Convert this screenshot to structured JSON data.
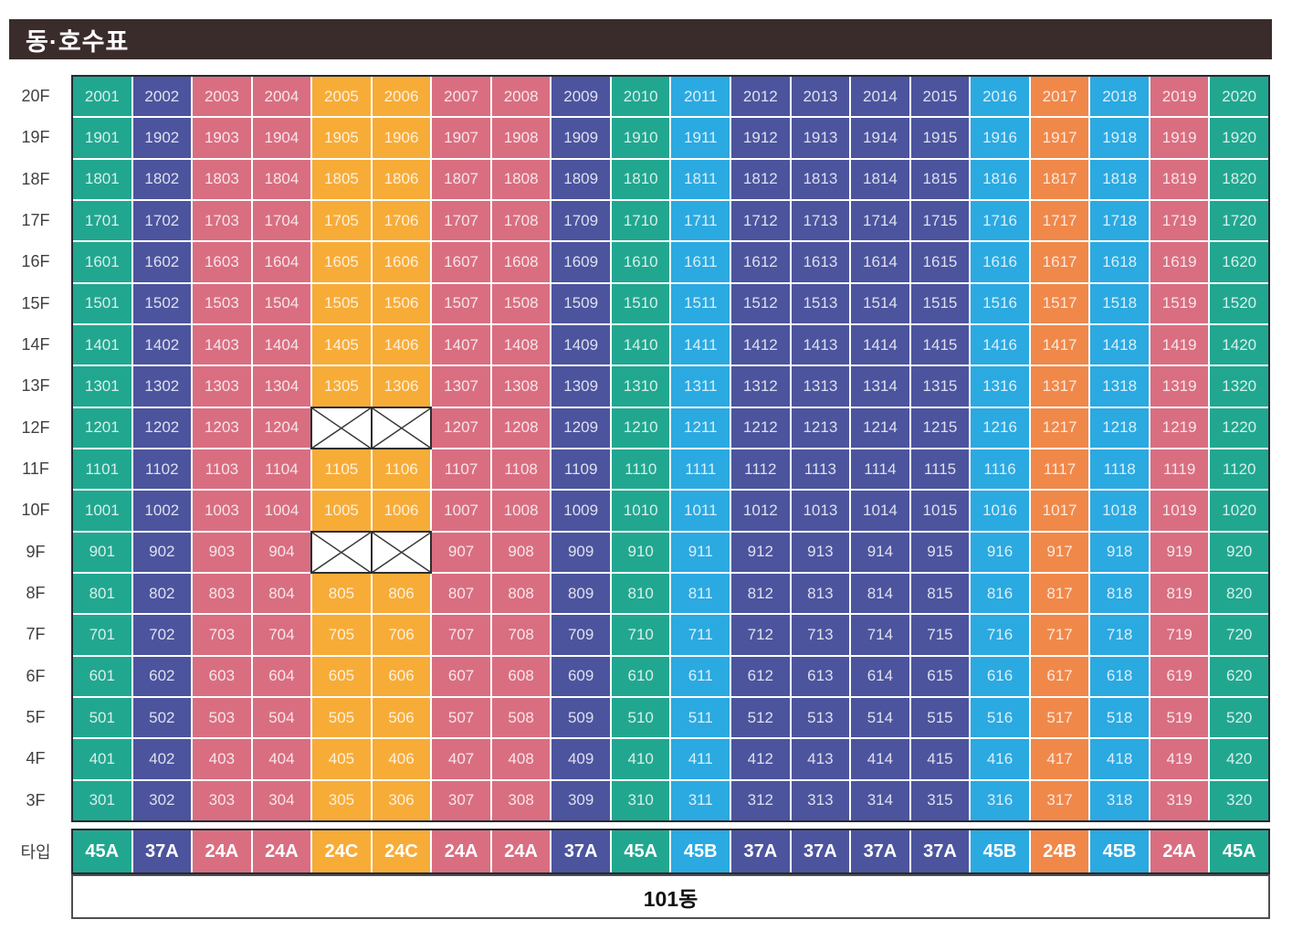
{
  "title": "동·호수표",
  "type_row_label": "타입",
  "building_label": "101동",
  "colors": {
    "title_bg": "#3B2C2C",
    "grid_border": "#252A33",
    "types": {
      "45A": "#21A78F",
      "37A": "#4C549E",
      "24A": "#D96E81",
      "24C": "#F7AC38",
      "45B": "#2BA9E1",
      "24B": "#F0884A"
    }
  },
  "column_types": [
    "45A",
    "37A",
    "24A",
    "24A",
    "24C",
    "24C",
    "24A",
    "24A",
    "37A",
    "45A",
    "45B",
    "37A",
    "37A",
    "37A",
    "37A",
    "45B",
    "24B",
    "45B",
    "24A",
    "45A"
  ],
  "floors": [
    {
      "label": "20F",
      "units": [
        "2001",
        "2002",
        "2003",
        "2004",
        "2005",
        "2006",
        "2007",
        "2008",
        "2009",
        "2010",
        "2011",
        "2012",
        "2013",
        "2014",
        "2015",
        "2016",
        "2017",
        "2018",
        "2019",
        "2020"
      ]
    },
    {
      "label": "19F",
      "units": [
        "1901",
        "1902",
        "1903",
        "1904",
        "1905",
        "1906",
        "1907",
        "1908",
        "1909",
        "1910",
        "1911",
        "1912",
        "1913",
        "1914",
        "1915",
        "1916",
        "1917",
        "1918",
        "1919",
        "1920"
      ]
    },
    {
      "label": "18F",
      "units": [
        "1801",
        "1802",
        "1803",
        "1804",
        "1805",
        "1806",
        "1807",
        "1808",
        "1809",
        "1810",
        "1811",
        "1812",
        "1813",
        "1814",
        "1815",
        "1816",
        "1817",
        "1818",
        "1819",
        "1820"
      ]
    },
    {
      "label": "17F",
      "units": [
        "1701",
        "1702",
        "1703",
        "1704",
        "1705",
        "1706",
        "1707",
        "1708",
        "1709",
        "1710",
        "1711",
        "1712",
        "1713",
        "1714",
        "1715",
        "1716",
        "1717",
        "1718",
        "1719",
        "1720"
      ]
    },
    {
      "label": "16F",
      "units": [
        "1601",
        "1602",
        "1603",
        "1604",
        "1605",
        "1606",
        "1607",
        "1608",
        "1609",
        "1610",
        "1611",
        "1612",
        "1613",
        "1614",
        "1615",
        "1616",
        "1617",
        "1618",
        "1619",
        "1620"
      ]
    },
    {
      "label": "15F",
      "units": [
        "1501",
        "1502",
        "1503",
        "1504",
        "1505",
        "1506",
        "1507",
        "1508",
        "1509",
        "1510",
        "1511",
        "1512",
        "1513",
        "1514",
        "1515",
        "1516",
        "1517",
        "1518",
        "1519",
        "1520"
      ]
    },
    {
      "label": "14F",
      "units": [
        "1401",
        "1402",
        "1403",
        "1404",
        "1405",
        "1406",
        "1407",
        "1408",
        "1409",
        "1410",
        "1411",
        "1412",
        "1413",
        "1414",
        "1415",
        "1416",
        "1417",
        "1418",
        "1419",
        "1420"
      ]
    },
    {
      "label": "13F",
      "units": [
        "1301",
        "1302",
        "1303",
        "1304",
        "1305",
        "1306",
        "1307",
        "1308",
        "1309",
        "1310",
        "1311",
        "1312",
        "1313",
        "1314",
        "1315",
        "1316",
        "1317",
        "1318",
        "1319",
        "1320"
      ]
    },
    {
      "label": "12F",
      "units": [
        "1201",
        "1202",
        "1203",
        "1204",
        null,
        null,
        "1207",
        "1208",
        "1209",
        "1210",
        "1211",
        "1212",
        "1213",
        "1214",
        "1215",
        "1216",
        "1217",
        "1218",
        "1219",
        "1220"
      ]
    },
    {
      "label": "11F",
      "units": [
        "1101",
        "1102",
        "1103",
        "1104",
        "1105",
        "1106",
        "1107",
        "1108",
        "1109",
        "1110",
        "1111",
        "1112",
        "1113",
        "1114",
        "1115",
        "1116",
        "1117",
        "1118",
        "1119",
        "1120"
      ]
    },
    {
      "label": "10F",
      "units": [
        "1001",
        "1002",
        "1003",
        "1004",
        "1005",
        "1006",
        "1007",
        "1008",
        "1009",
        "1010",
        "1011",
        "1012",
        "1013",
        "1014",
        "1015",
        "1016",
        "1017",
        "1018",
        "1019",
        "1020"
      ]
    },
    {
      "label": "9F",
      "units": [
        "901",
        "902",
        "903",
        "904",
        null,
        null,
        "907",
        "908",
        "909",
        "910",
        "911",
        "912",
        "913",
        "914",
        "915",
        "916",
        "917",
        "918",
        "919",
        "920"
      ]
    },
    {
      "label": "8F",
      "units": [
        "801",
        "802",
        "803",
        "804",
        "805",
        "806",
        "807",
        "808",
        "809",
        "810",
        "811",
        "812",
        "813",
        "814",
        "815",
        "816",
        "817",
        "818",
        "819",
        "820"
      ]
    },
    {
      "label": "7F",
      "units": [
        "701",
        "702",
        "703",
        "704",
        "705",
        "706",
        "707",
        "708",
        "709",
        "710",
        "711",
        "712",
        "713",
        "714",
        "715",
        "716",
        "717",
        "718",
        "719",
        "720"
      ]
    },
    {
      "label": "6F",
      "units": [
        "601",
        "602",
        "603",
        "604",
        "605",
        "606",
        "607",
        "608",
        "609",
        "610",
        "611",
        "612",
        "613",
        "614",
        "615",
        "616",
        "617",
        "618",
        "619",
        "620"
      ]
    },
    {
      "label": "5F",
      "units": [
        "501",
        "502",
        "503",
        "504",
        "505",
        "506",
        "507",
        "508",
        "509",
        "510",
        "511",
        "512",
        "513",
        "514",
        "515",
        "516",
        "517",
        "518",
        "519",
        "520"
      ]
    },
    {
      "label": "4F",
      "units": [
        "401",
        "402",
        "403",
        "404",
        "405",
        "406",
        "407",
        "408",
        "409",
        "410",
        "411",
        "412",
        "413",
        "414",
        "415",
        "416",
        "417",
        "418",
        "419",
        "420"
      ]
    },
    {
      "label": "3F",
      "units": [
        "301",
        "302",
        "303",
        "304",
        "305",
        "306",
        "307",
        "308",
        "309",
        "310",
        "311",
        "312",
        "313",
        "314",
        "315",
        "316",
        "317",
        "318",
        "319",
        "320"
      ]
    }
  ]
}
